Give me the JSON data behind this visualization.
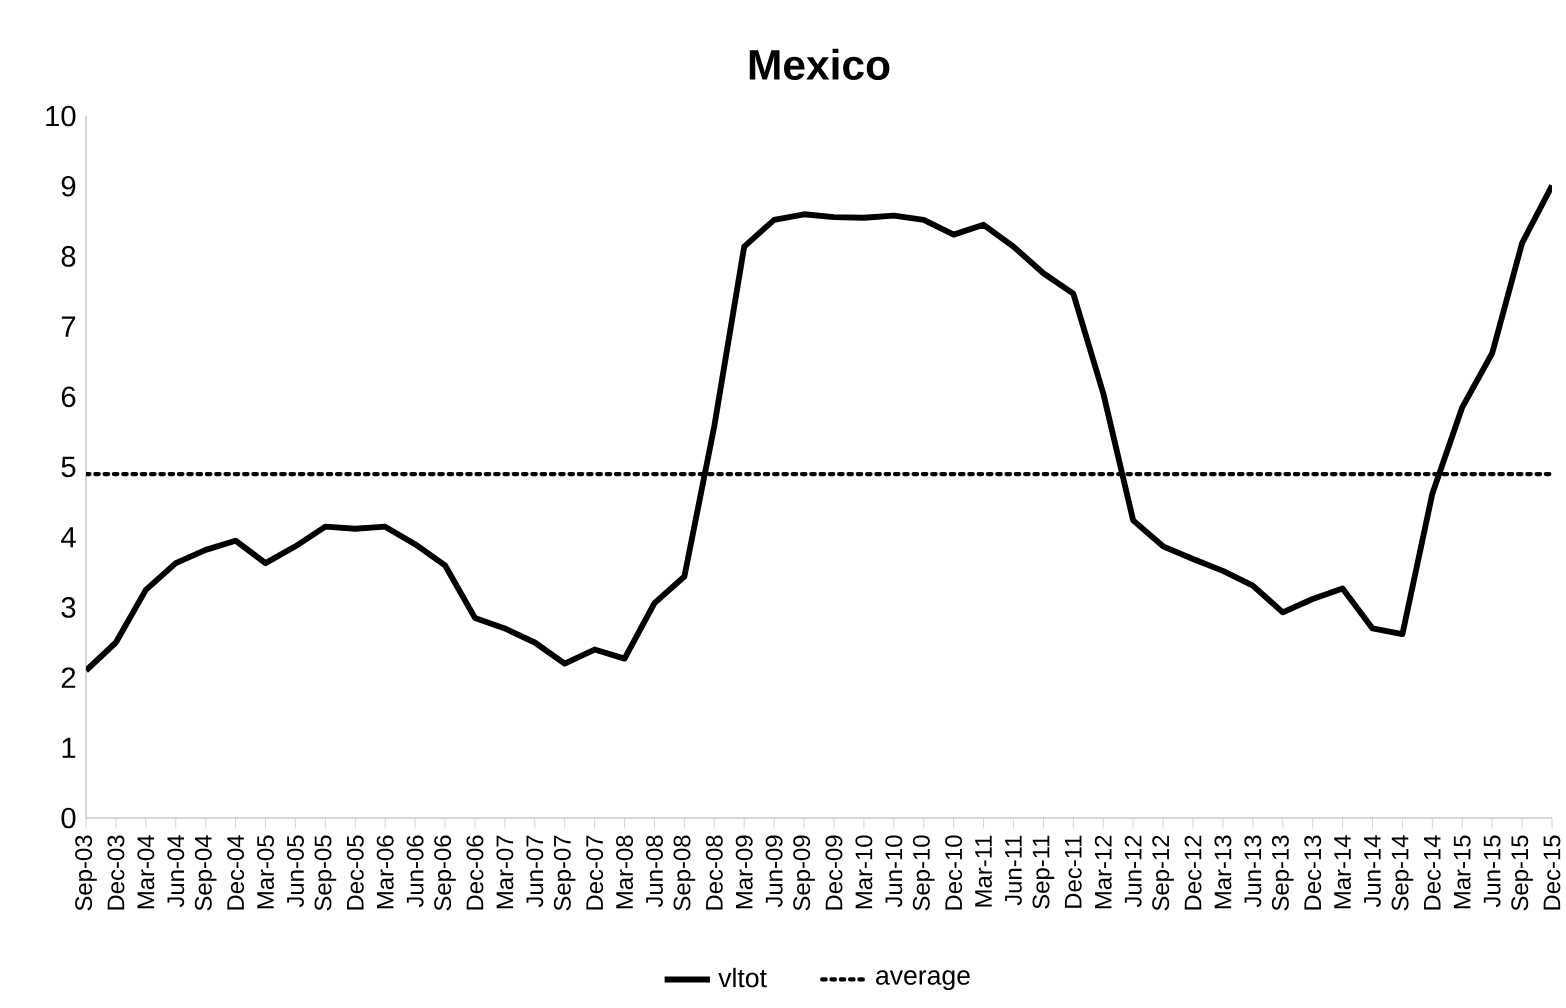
{
  "chart_data": {
    "type": "line",
    "title": "Mexico",
    "categories": [
      "Sep-03",
      "Dec-03",
      "Mar-04",
      "Jun-04",
      "Sep-04",
      "Dec-04",
      "Mar-05",
      "Jun-05",
      "Sep-05",
      "Dec-05",
      "Mar-06",
      "Jun-06",
      "Sep-06",
      "Dec-06",
      "Mar-07",
      "Jun-07",
      "Sep-07",
      "Dec-07",
      "Mar-08",
      "Jun-08",
      "Sep-08",
      "Dec-08",
      "Mar-09",
      "Jun-09",
      "Sep-09",
      "Dec-09",
      "Mar-10",
      "Jun-10",
      "Sep-10",
      "Dec-10",
      "Mar-11",
      "Jun-11",
      "Sep-11",
      "Dec-11",
      "Mar-12",
      "Jun-12",
      "Sep-12",
      "Dec-12",
      "Mar-13",
      "Jun-13",
      "Sep-13",
      "Dec-13",
      "Mar-14",
      "Jun-14",
      "Sep-14",
      "Dec-14",
      "Mar-15",
      "Jun-15",
      "Sep-15",
      "Dec-15"
    ],
    "series": [
      {
        "name": "vltot",
        "color": "#000000",
        "line_style": "solid",
        "values": [
          2.1,
          2.5,
          3.25,
          3.63,
          3.82,
          3.95,
          3.63,
          3.87,
          4.15,
          4.12,
          4.15,
          3.9,
          3.6,
          2.85,
          2.7,
          2.5,
          2.2,
          2.4,
          2.27,
          3.06,
          3.44,
          5.58,
          8.14,
          8.52,
          8.6,
          8.56,
          8.55,
          8.58,
          8.52,
          8.31,
          8.45,
          8.14,
          7.76,
          7.47,
          6.05,
          4.24,
          3.87,
          3.69,
          3.52,
          3.31,
          2.93,
          3.12,
          3.27,
          2.7,
          2.62,
          4.62,
          5.85,
          6.62,
          8.19,
          9.01
        ]
      },
      {
        "name": "average",
        "color": "#000000",
        "line_style": "dotted",
        "values": [
          4.9,
          4.9,
          4.9,
          4.9,
          4.9,
          4.9,
          4.9,
          4.9,
          4.9,
          4.9,
          4.9,
          4.9,
          4.9,
          4.9,
          4.9,
          4.9,
          4.9,
          4.9,
          4.9,
          4.9,
          4.9,
          4.9,
          4.9,
          4.9,
          4.9,
          4.9,
          4.9,
          4.9,
          4.9,
          4.9,
          4.9,
          4.9,
          4.9,
          4.9,
          4.9,
          4.9,
          4.9,
          4.9,
          4.9,
          4.9,
          4.9,
          4.9,
          4.9,
          4.9,
          4.9,
          4.9,
          4.9,
          4.9,
          4.9,
          4.9
        ]
      }
    ],
    "ylim": [
      0,
      10
    ],
    "yticks": [
      0,
      1,
      2,
      3,
      4,
      5,
      6,
      7,
      8,
      9,
      10
    ],
    "legend": "bottom",
    "grid": false
  }
}
